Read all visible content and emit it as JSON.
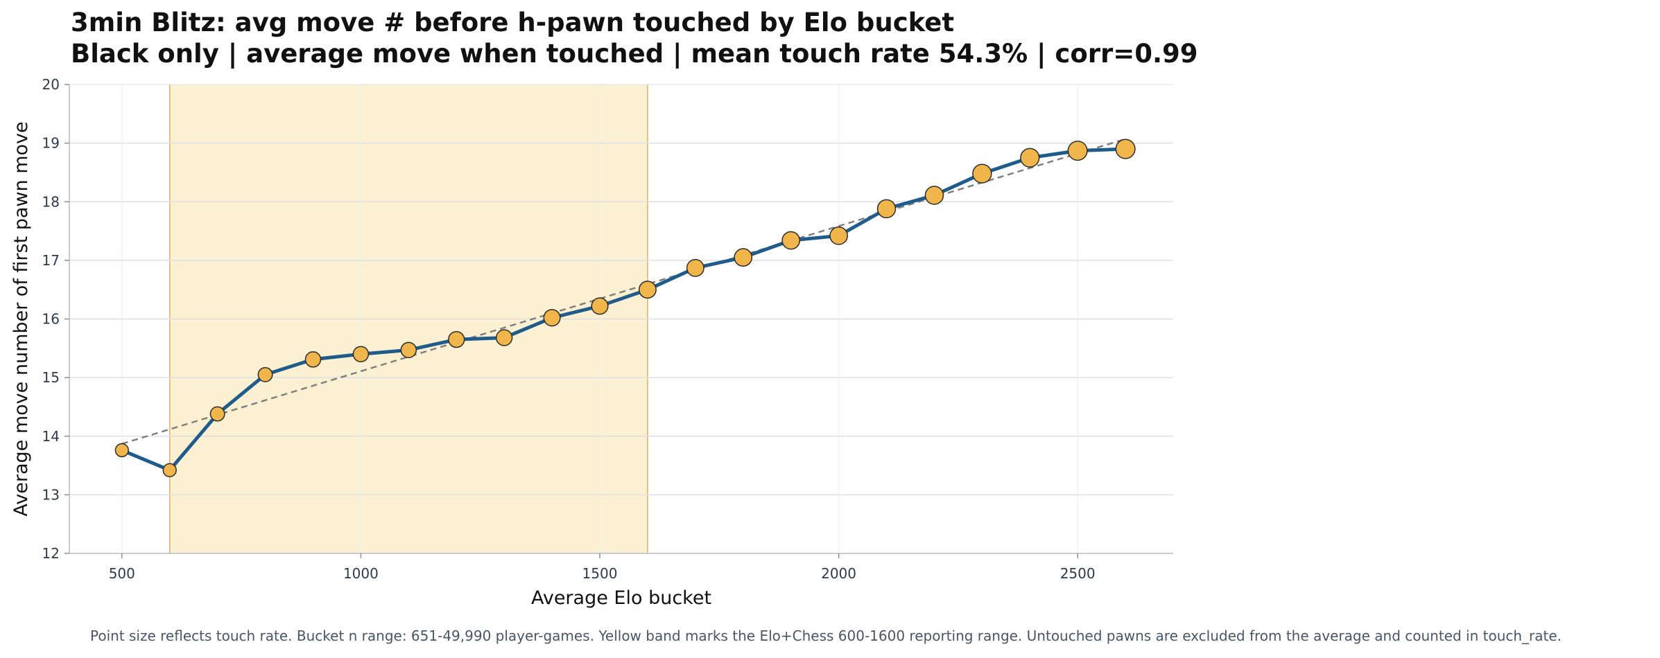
{
  "title_line1": "3min Blitz: avg move # before h-pawn touched by Elo bucket",
  "title_line2": "Black only | average move when touched | mean touch rate 54.3% | corr=0.99",
  "footnote": "Point size reflects touch rate. Bucket n range: 651-49,990 player-games. Yellow band marks the Elo+Chess 600-1600 reporting range. Untouched pawns are excluded from the average and counted in touch_rate.",
  "colors": {
    "line": "#1f5c8b",
    "marker_fill": "#f0b64c",
    "marker_edge": "#2b2b2b",
    "band_fill": "#fbf0d2",
    "band_edge": "#e0ae6a",
    "trend": "#808080",
    "grid": "#dcdfe4",
    "tick_text": "#2d3a4a"
  },
  "chart_data": {
    "type": "line",
    "title": "3min Blitz: avg move # before h-pawn touched by Elo bucket",
    "subtitle": "Black only | average move when touched | mean touch rate 54.3% | corr=0.99",
    "xlabel": "Average Elo bucket",
    "ylabel": "Average move number of first pawn move",
    "xlim": [
      390,
      2700
    ],
    "ylim": [
      12,
      20
    ],
    "xticks": [
      500,
      1000,
      1500,
      2000,
      2500
    ],
    "yticks": [
      12,
      13,
      14,
      15,
      16,
      17,
      18,
      19,
      20
    ],
    "grid": true,
    "shaded_band": {
      "x_start": 600,
      "x_end": 1600
    },
    "trend_line": {
      "x": [
        500,
        2600
      ],
      "y": [
        13.87,
        19.07
      ]
    },
    "series": [
      {
        "x": [
          500,
          600,
          700,
          800,
          900,
          1000,
          1100,
          1200,
          1300,
          1400,
          1500,
          1600,
          1700,
          1800,
          1900,
          2000,
          2100,
          2200,
          2300,
          2400,
          2500,
          2600
        ],
        "y": [
          13.76,
          13.42,
          14.38,
          15.05,
          15.31,
          15.4,
          15.47,
          15.65,
          15.68,
          16.02,
          16.22,
          16.5,
          16.87,
          17.05,
          17.34,
          17.42,
          17.88,
          18.11,
          18.48,
          18.75,
          18.87,
          18.9
        ],
        "touch_rate_size": [
          0.3,
          0.3,
          0.4,
          0.4,
          0.5,
          0.5,
          0.5,
          0.55,
          0.55,
          0.6,
          0.6,
          0.65,
          0.65,
          0.7,
          0.7,
          0.7,
          0.75,
          0.75,
          0.8,
          0.8,
          0.85,
          0.85
        ]
      }
    ]
  }
}
